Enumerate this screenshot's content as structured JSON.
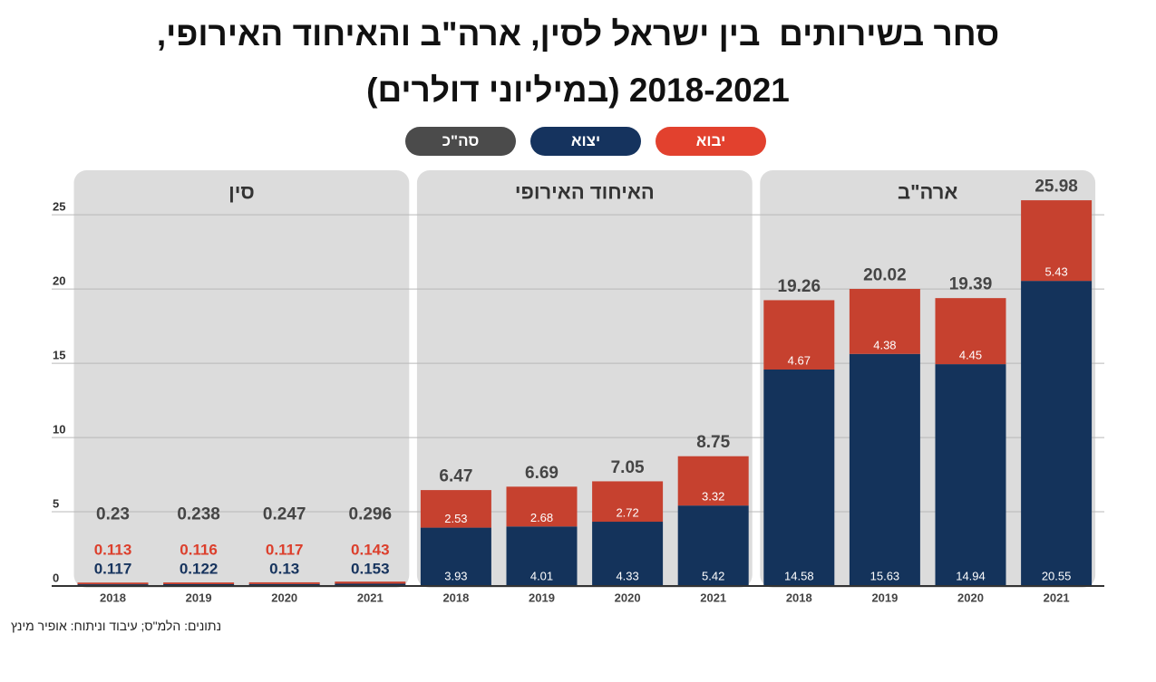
{
  "chart_data": {
    "type": "bar",
    "stacked": true,
    "title": "סחר בשירותים  בין ישראל לסין, ארה\"ב והאיחוד האירופי,\n2018-2021 (במיליוני דולרים)",
    "legend": [
      {
        "series": "import",
        "label": "יבוא",
        "color": "#e2412e"
      },
      {
        "series": "export",
        "label": "יצוא",
        "color": "#15335e"
      },
      {
        "series": "total",
        "label": "סה\"כ",
        "color": "#4b4b4b"
      }
    ],
    "ylim": [
      0,
      28
    ],
    "yticks": [
      0,
      5,
      10,
      15,
      20,
      25
    ],
    "grid": true,
    "groups": [
      {
        "name": "סין",
        "categories": [
          "2018",
          "2019",
          "2020",
          "2021"
        ],
        "export": [
          0.117,
          0.122,
          0.13,
          0.153
        ],
        "import": [
          0.113,
          0.116,
          0.117,
          0.143
        ],
        "total": [
          0.23,
          0.238,
          0.247,
          0.296
        ]
      },
      {
        "name": "האיחוד האירופי",
        "categories": [
          "2018",
          "2019",
          "2020",
          "2021"
        ],
        "export": [
          3.93,
          4.01,
          4.33,
          5.42
        ],
        "import": [
          2.53,
          2.68,
          2.72,
          3.32
        ],
        "total": [
          6.47,
          6.69,
          7.05,
          8.75
        ]
      },
      {
        "name": "ארה\"ב",
        "categories": [
          "2018",
          "2019",
          "2020",
          "2021"
        ],
        "export": [
          14.58,
          15.63,
          14.94,
          20.55
        ],
        "import": [
          4.67,
          4.38,
          4.45,
          5.43
        ],
        "total": [
          19.26,
          20.02,
          19.39,
          25.98
        ]
      }
    ],
    "colors": {
      "export": "#14335b",
      "import": "#c6412f",
      "total_label": "#454545",
      "import_label": "#dc3f2c",
      "export_label": "#17345e",
      "panel_bg": "#dcdcdc",
      "gridline": "#b9b9b9",
      "axis_text": "#444444",
      "baseline": "#333333",
      "inside_label": "#ffffff"
    },
    "source": "נתונים: הלמ\"ס; עיבוד וניתוח: אופיר מינץ"
  }
}
